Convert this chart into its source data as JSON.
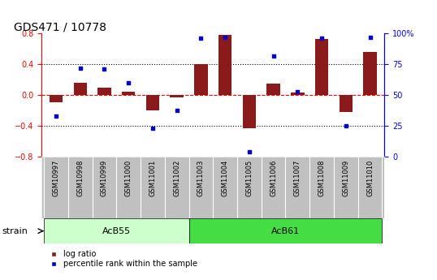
{
  "title": "GDS471 / 10778",
  "samples": [
    "GSM10997",
    "GSM10998",
    "GSM10999",
    "GSM11000",
    "GSM11001",
    "GSM11002",
    "GSM11003",
    "GSM11004",
    "GSM11005",
    "GSM11006",
    "GSM11007",
    "GSM11008",
    "GSM11009",
    "GSM11010"
  ],
  "log_ratio": [
    -0.09,
    0.16,
    0.1,
    0.05,
    -0.2,
    -0.03,
    0.4,
    0.78,
    -0.43,
    0.15,
    0.04,
    0.73,
    -0.22,
    0.56
  ],
  "percentile_rank": [
    33,
    72,
    71,
    60,
    23,
    38,
    96,
    97,
    4,
    82,
    53,
    96,
    25,
    97
  ],
  "ylim_left": [
    -0.8,
    0.8
  ],
  "ylim_right": [
    0,
    100
  ],
  "yticks_left": [
    -0.8,
    -0.4,
    0.0,
    0.4,
    0.8
  ],
  "yticks_right": [
    0,
    25,
    50,
    75,
    100
  ],
  "ytick_labels_right": [
    "0",
    "25",
    "50",
    "75",
    "100%"
  ],
  "group1_label": "AcB55",
  "group2_label": "AcB61",
  "group1_count": 6,
  "group2_count": 8,
  "strain_label": "strain",
  "legend_log_ratio": "log ratio",
  "legend_percentile": "percentile rank within the sample",
  "bar_color": "#8B1A1A",
  "point_color": "#0000CC",
  "group1_bg": "#CCFFCC",
  "group2_bg": "#44DD44",
  "sample_label_bg": "#C0C0C0",
  "title_fontsize": 10,
  "tick_fontsize": 7,
  "sample_fontsize": 6,
  "group_fontsize": 8,
  "legend_fontsize": 7,
  "bar_width": 0.55
}
